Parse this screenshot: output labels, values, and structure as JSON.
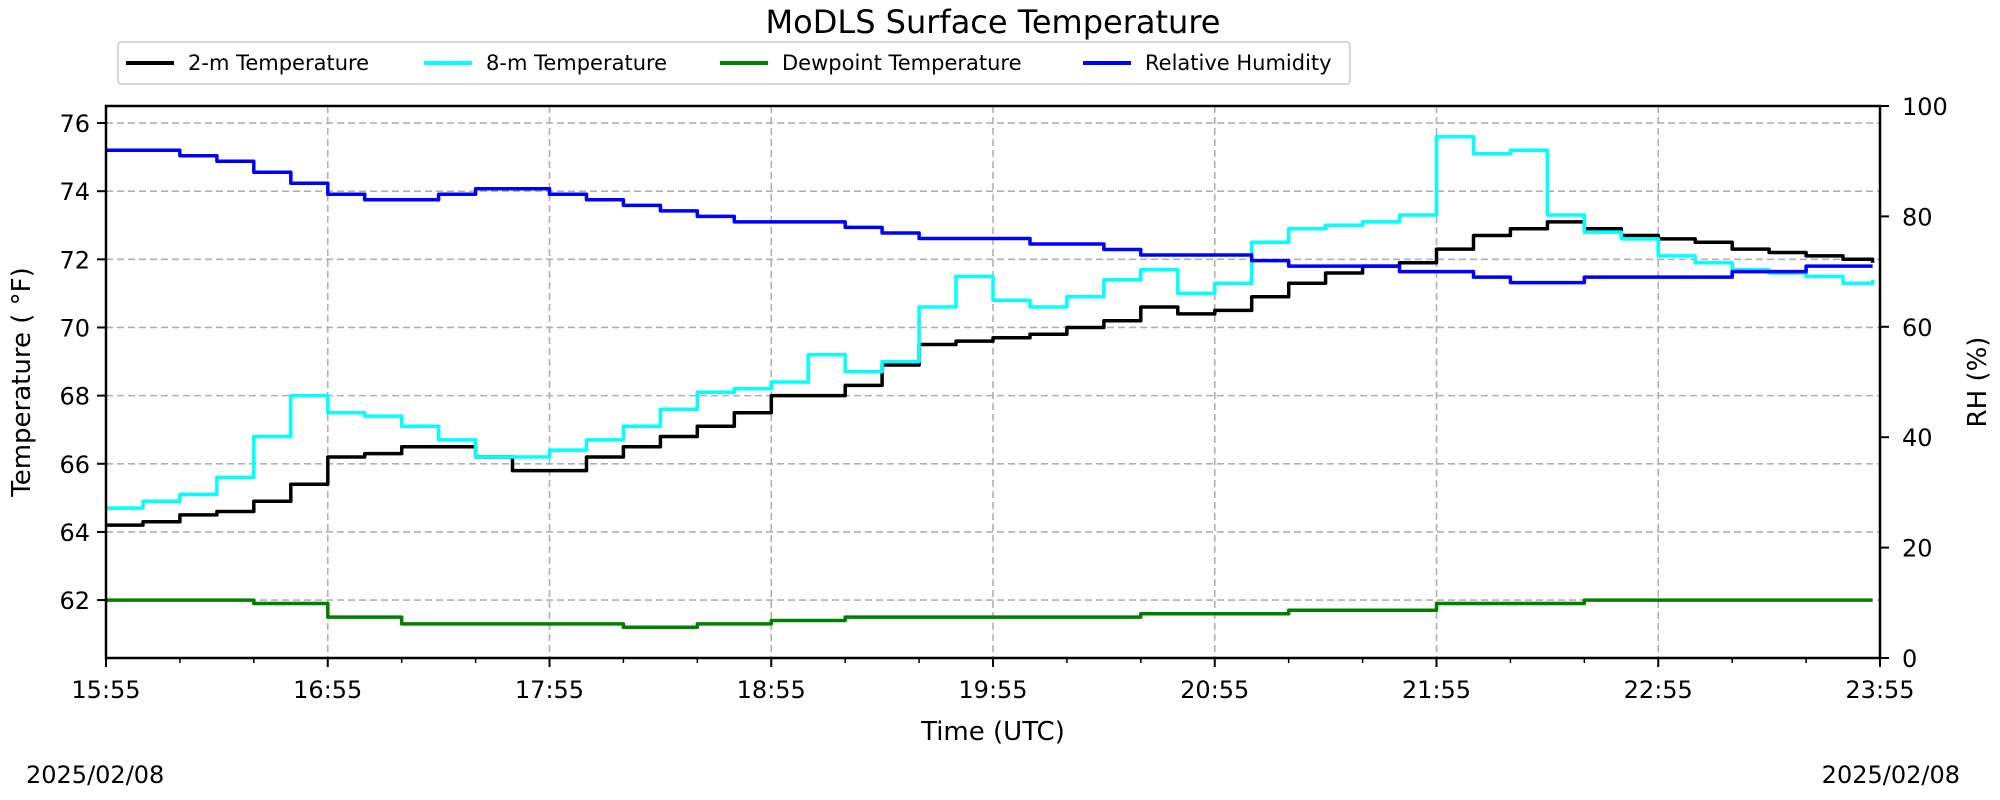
{
  "chart_data": {
    "type": "line",
    "title": "MoDLS Surface Temperature",
    "xlabel": "Time (UTC)",
    "ylabel": "Temperature ($^\\circ$F)",
    "ylabel_display": "Temperature ( °F)",
    "y2label": "RH (%)",
    "x_ticks": [
      "15:55",
      "16:55",
      "17:55",
      "18:55",
      "19:55",
      "20:55",
      "21:55",
      "22:55",
      "23:55"
    ],
    "x_range": [
      "15:55",
      "23:55"
    ],
    "ylim": [
      60.3,
      76.5
    ],
    "y_ticks": [
      62,
      64,
      66,
      68,
      70,
      72,
      74,
      76
    ],
    "y2lim": [
      0,
      100
    ],
    "y2_ticks": [
      0,
      20,
      40,
      60,
      80,
      100
    ],
    "grid": true,
    "legend_position": "top-left",
    "series": [
      {
        "name": "2-m Temperature",
        "color": "#000000",
        "axis": "left",
        "x": [
          "15:55",
          "16:05",
          "16:15",
          "16:25",
          "16:35",
          "16:45",
          "16:55",
          "17:05",
          "17:15",
          "17:25",
          "17:35",
          "17:45",
          "17:55",
          "18:05",
          "18:15",
          "18:25",
          "18:35",
          "18:45",
          "18:55",
          "19:05",
          "19:15",
          "19:25",
          "19:35",
          "19:45",
          "19:55",
          "20:05",
          "20:15",
          "20:25",
          "20:35",
          "20:45",
          "20:55",
          "21:05",
          "21:15",
          "21:25",
          "21:35",
          "21:45",
          "21:55",
          "22:05",
          "22:15",
          "22:25",
          "22:35",
          "22:45",
          "22:55",
          "23:05",
          "23:15",
          "23:25",
          "23:35",
          "23:45",
          "23:53"
        ],
        "values": [
          64.2,
          64.3,
          64.5,
          64.6,
          64.9,
          65.4,
          66.2,
          66.3,
          66.5,
          66.5,
          66.2,
          65.8,
          65.8,
          66.2,
          66.5,
          66.8,
          67.1,
          67.5,
          68.0,
          68.0,
          68.3,
          68.9,
          69.5,
          69.6,
          69.7,
          69.8,
          70.0,
          70.2,
          70.6,
          70.4,
          70.5,
          70.9,
          71.3,
          71.6,
          71.8,
          71.9,
          72.3,
          72.7,
          72.9,
          73.1,
          72.9,
          72.7,
          72.6,
          72.5,
          72.3,
          72.2,
          72.1,
          72.0,
          71.9
        ]
      },
      {
        "name": "8-m Temperature",
        "color": "#00ffff",
        "axis": "left",
        "x": [
          "15:55",
          "16:05",
          "16:15",
          "16:25",
          "16:35",
          "16:45",
          "16:55",
          "17:05",
          "17:15",
          "17:25",
          "17:35",
          "17:45",
          "17:55",
          "18:05",
          "18:15",
          "18:25",
          "18:35",
          "18:45",
          "18:55",
          "19:05",
          "19:15",
          "19:25",
          "19:35",
          "19:45",
          "19:55",
          "20:05",
          "20:15",
          "20:25",
          "20:35",
          "20:45",
          "20:55",
          "21:05",
          "21:15",
          "21:25",
          "21:35",
          "21:45",
          "21:55",
          "22:05",
          "22:15",
          "22:25",
          "22:35",
          "22:45",
          "22:55",
          "23:05",
          "23:15",
          "23:25",
          "23:35",
          "23:45",
          "23:53"
        ],
        "values": [
          64.7,
          64.9,
          65.1,
          65.6,
          66.8,
          68.0,
          67.5,
          67.4,
          67.1,
          66.7,
          66.2,
          66.2,
          66.4,
          66.7,
          67.1,
          67.6,
          68.1,
          68.2,
          68.4,
          69.2,
          68.7,
          69.0,
          70.6,
          71.5,
          70.8,
          70.6,
          70.9,
          71.4,
          71.7,
          71.0,
          71.3,
          72.5,
          72.9,
          73.0,
          73.1,
          73.3,
          75.6,
          75.1,
          75.2,
          73.3,
          72.8,
          72.6,
          72.1,
          71.9,
          71.7,
          71.6,
          71.5,
          71.3,
          71.4
        ]
      },
      {
        "name": "Dewpoint Temperature",
        "color": "#008000",
        "axis": "left",
        "x": [
          "15:55",
          "16:15",
          "16:35",
          "16:55",
          "17:15",
          "17:35",
          "17:55",
          "18:15",
          "18:35",
          "18:55",
          "19:15",
          "19:35",
          "19:55",
          "20:15",
          "20:35",
          "20:55",
          "21:15",
          "21:35",
          "21:55",
          "22:15",
          "22:35",
          "22:55",
          "23:15",
          "23:35",
          "23:53"
        ],
        "values": [
          62.0,
          62.0,
          61.9,
          61.5,
          61.3,
          61.3,
          61.3,
          61.2,
          61.3,
          61.4,
          61.5,
          61.5,
          61.5,
          61.5,
          61.6,
          61.6,
          61.7,
          61.7,
          61.9,
          61.9,
          62.0,
          62.0,
          62.0,
          62.0,
          62.0
        ]
      },
      {
        "name": "Relative Humidity",
        "color": "#0000ff",
        "axis": "right",
        "x": [
          "15:55",
          "16:05",
          "16:15",
          "16:25",
          "16:35",
          "16:45",
          "16:55",
          "17:05",
          "17:15",
          "17:25",
          "17:35",
          "17:45",
          "17:55",
          "18:05",
          "18:15",
          "18:25",
          "18:35",
          "18:45",
          "18:55",
          "19:05",
          "19:15",
          "19:25",
          "19:35",
          "19:45",
          "19:55",
          "20:05",
          "20:15",
          "20:25",
          "20:35",
          "20:45",
          "20:55",
          "21:05",
          "21:15",
          "21:25",
          "21:35",
          "21:45",
          "21:55",
          "22:05",
          "22:15",
          "22:25",
          "22:35",
          "22:45",
          "22:55",
          "23:05",
          "23:15",
          "23:25",
          "23:35",
          "23:45",
          "23:53"
        ],
        "values": [
          92,
          92,
          91,
          90,
          88,
          86,
          84,
          83,
          83,
          84,
          85,
          85,
          84,
          83,
          82,
          81,
          80,
          79,
          79,
          79,
          78,
          77,
          76,
          76,
          76,
          75,
          75,
          74,
          73,
          73,
          73,
          72,
          71,
          71,
          71,
          70,
          70,
          69,
          68,
          68,
          69,
          69,
          69,
          69,
          70,
          70,
          71,
          71,
          71
        ]
      }
    ]
  },
  "footer": {
    "date_left": "2025/02/08",
    "date_right": "2025/02/08"
  }
}
